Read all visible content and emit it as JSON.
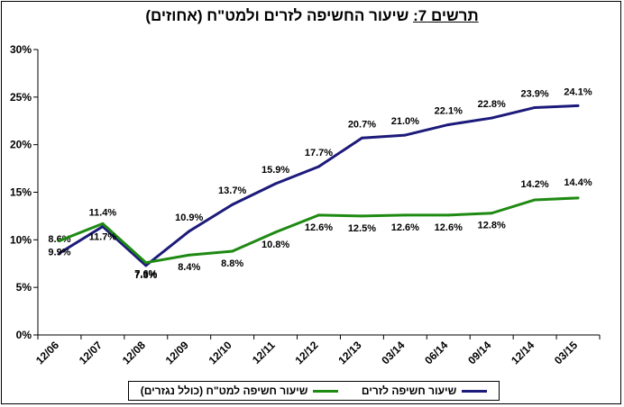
{
  "title": {
    "label": "תרשים 7:",
    "text": " שיעור החשיפה לזרים ולמט\"ח (אחוזים)"
  },
  "chart_data": {
    "type": "line",
    "categories": [
      "12/06",
      "12/07",
      "12/08",
      "12/09",
      "12/10",
      "12/11",
      "12/12",
      "12/13",
      "03/14",
      "06/14",
      "09/14",
      "12/14",
      "03/15"
    ],
    "ylim": [
      0,
      30
    ],
    "yticks": [
      "0%",
      "5%",
      "10%",
      "15%",
      "20%",
      "25%",
      "30%"
    ],
    "ytick_values": [
      0,
      5,
      10,
      15,
      20,
      25,
      30
    ],
    "grid": false,
    "legend_position": "bottom",
    "series": [
      {
        "name": "שיעור חשיפה לזרים",
        "color": "#1c1a7a",
        "values": [
          8.6,
          11.4,
          7.3,
          10.9,
          13.7,
          15.9,
          17.7,
          20.7,
          21.0,
          22.1,
          22.8,
          23.9,
          24.1
        ],
        "labels": [
          "8.6%",
          "11.4%",
          "7.3%",
          "10.9%",
          "13.7%",
          "15.9%",
          "17.7%",
          "20.7%",
          "21.0%",
          "22.1%",
          "22.8%",
          "23.9%",
          "24.1%"
        ]
      },
      {
        "name": "שיעור חשיפה למט\"ח (כולל נגזרים)",
        "color": "#1e8a12",
        "values": [
          9.9,
          11.7,
          7.6,
          8.4,
          8.8,
          10.8,
          12.6,
          12.5,
          12.6,
          12.6,
          12.8,
          14.2,
          14.4
        ],
        "labels": [
          "9.9%",
          "11.7%",
          "7.6%",
          "8.4%",
          "8.8%",
          "10.8%",
          "12.6%",
          "12.5%",
          "12.6%",
          "12.6%",
          "12.8%",
          "14.2%",
          "14.4%"
        ]
      }
    ]
  }
}
